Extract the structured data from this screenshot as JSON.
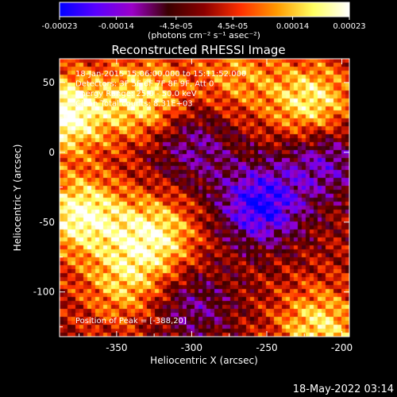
{
  "colorbar": {
    "tick_labels": [
      "-0.00023",
      "-0.00014",
      "-4.5e-05",
      "4.5e-05",
      "0.00014",
      "0.00023"
    ],
    "tick_values": [
      -0.00023,
      -0.00014,
      -4.5e-05,
      4.5e-05,
      0.00014,
      0.00023
    ],
    "range": [
      -0.00023,
      0.00023
    ],
    "units_label": "(photons cm⁻² s⁻¹ asec⁻²)",
    "colormap": [
      "#0000ff",
      "#5a00ff",
      "#9b00c8",
      "#3a0000",
      "#8c0000",
      "#ff3000",
      "#ff9a00",
      "#ffff60",
      "#ffffff"
    ]
  },
  "chart_data": {
    "type": "heatmap",
    "title": "Reconstructed RHESSI Image",
    "xlabel": "Heliocentric X (arcsec)",
    "ylabel": "Heliocentric Y (arcsec)",
    "xlim": [
      -388,
      -195
    ],
    "ylim": [
      -132,
      67
    ],
    "x_ticks": [
      -350,
      -300,
      -250,
      -200
    ],
    "x_tick_labels": [
      "-350",
      "-300",
      "-250",
      "-200"
    ],
    "y_ticks": [
      50,
      0,
      -50,
      -100
    ],
    "y_tick_labels": [
      "50",
      "0",
      "-50",
      "-100"
    ],
    "annotations": [
      "18-Jan-2015 15:06:00.000 to 15:11:52.000",
      "Detectors: 3F 5F 6F 7F 8F 9F, Att 0",
      "Energy Range: 25.0 - 50.0 keV",
      "Clean    Total counts: 8.31E+03"
    ],
    "peak_label": "Position of Peak = [-388,20]",
    "peak": [
      -388,
      20
    ],
    "sources": [
      {
        "x": -385,
        "y": 28,
        "amp": 1.0
      },
      {
        "x": -374,
        "y": -45,
        "amp": 0.9
      },
      {
        "x": -325,
        "y": -60,
        "amp": 0.8
      },
      {
        "x": -332,
        "y": 38,
        "amp": 0.75
      },
      {
        "x": -220,
        "y": 35,
        "amp": 0.8
      },
      {
        "x": -215,
        "y": -125,
        "amp": 0.7
      },
      {
        "x": -345,
        "y": -95,
        "amp": 0.55
      },
      {
        "x": -270,
        "y": 55,
        "amp": 0.45
      },
      {
        "x": -254,
        "y": -38,
        "amp": -0.95
      },
      {
        "x": -212,
        "y": -5,
        "amp": -0.6
      },
      {
        "x": -300,
        "y": -110,
        "amp": -0.45
      },
      {
        "x": -300,
        "y": 5,
        "amp": -0.5
      }
    ]
  },
  "timestamp": "18-May-2022 03:14"
}
